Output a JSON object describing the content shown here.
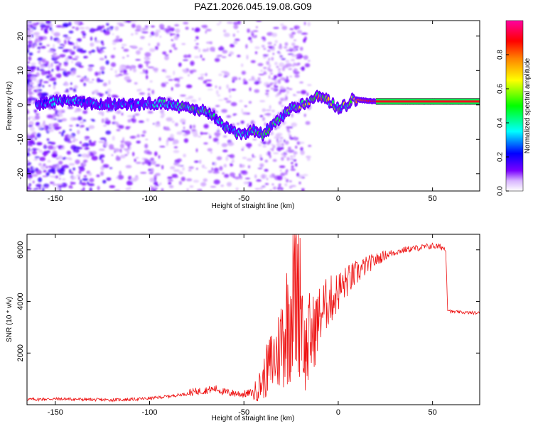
{
  "title": "PAZ1.2026.045.19.08.G09",
  "chart_data": [
    {
      "type": "heatmap",
      "name": "spectrogram",
      "xlabel": "Height of straight line (km)",
      "ylabel": "Frequency (Hz)",
      "xlim": [
        -165,
        75
      ],
      "ylim": [
        -25,
        24.5
      ],
      "xticks": [
        -150,
        -100,
        -50,
        0,
        50
      ],
      "xtick_labels": [
        "-150",
        "-100",
        "-50",
        "0",
        "50"
      ],
      "yticks": [
        -20,
        -10,
        0,
        10,
        20
      ],
      "ytick_labels": [
        "-20",
        "-10",
        "0",
        "10",
        "20"
      ],
      "colorbar": {
        "label": "Normalized spectral amplitude",
        "range": [
          0,
          1
        ],
        "ticks": [
          0.0,
          0.2,
          0.4,
          0.6,
          0.8
        ],
        "tick_labels": [
          "0.0",
          "0.2",
          "0.4",
          "0.6",
          "0.8"
        ],
        "colors": [
          "#ffffff",
          "#d8b4ff",
          "#7a00ff",
          "#0000ff",
          "#00ffff",
          "#00ff00",
          "#ffff00",
          "#ff8000",
          "#ff0000",
          "#ff00a0"
        ]
      },
      "ridge": {
        "height_km": [
          -165,
          -155,
          -145,
          -135,
          -125,
          -115,
          -105,
          -98,
          -90,
          -80,
          -70,
          -65,
          -60,
          -55,
          -50,
          -45,
          -40,
          -35,
          -30,
          -27,
          -25,
          -20,
          -15,
          -10,
          -5,
          0,
          5,
          8,
          10,
          20,
          30,
          50,
          75
        ],
        "frequency_hz": [
          -0.5,
          0.5,
          1.5,
          0.5,
          0,
          0.5,
          0,
          0.5,
          0.5,
          -1,
          -2,
          -4,
          -6,
          -8,
          -8.5,
          -7.5,
          -8.5,
          -6,
          -4,
          -2,
          -1,
          0,
          1,
          3,
          1,
          -1,
          0,
          2,
          1.5,
          1,
          1,
          1,
          1
        ],
        "amplitude": [
          0.3,
          0.3,
          0.35,
          0.3,
          0.3,
          0.3,
          0.3,
          0.35,
          0.4,
          0.45,
          0.45,
          0.4,
          0.4,
          0.35,
          0.4,
          0.5,
          0.5,
          0.45,
          0.45,
          0.5,
          0.55,
          0.6,
          0.65,
          0.7,
          0.6,
          0.5,
          0.6,
          0.75,
          0.8,
          0.9,
          0.95,
          0.95,
          0.95
        ]
      }
    },
    {
      "type": "line",
      "name": "snr",
      "xlabel": "Height of straight line (km)",
      "ylabel": "SNR (10 * v/v)",
      "xlim": [
        -165,
        75
      ],
      "ylim": [
        0,
        6600
      ],
      "xticks": [
        -150,
        -100,
        -50,
        0,
        50
      ],
      "xtick_labels": [
        "-150",
        "-100",
        "-50",
        "0",
        "50"
      ],
      "yticks": [
        2000,
        4000,
        6000
      ],
      "ytick_labels": [
        "2000",
        "4000",
        "6000"
      ],
      "color": "#ee1111",
      "series": [
        {
          "name": "SNR",
          "x": [
            -165,
            -150,
            -140,
            -130,
            -120,
            -110,
            -100,
            -90,
            -80,
            -70,
            -65,
            -60,
            -55,
            -50,
            -45,
            -40,
            -38,
            -35,
            -32,
            -30,
            -28,
            -26,
            -24,
            -22,
            -20,
            -18,
            -15,
            -12,
            -10,
            -8,
            -5,
            -2,
            0,
            5,
            10,
            15,
            20,
            25,
            30,
            35,
            40,
            45,
            50,
            55,
            57,
            58,
            60,
            65,
            70,
            75
          ],
          "y": [
            180,
            200,
            190,
            170,
            160,
            180,
            220,
            300,
            400,
            500,
            560,
            420,
            380,
            350,
            420,
            900,
            1300,
            1700,
            2000,
            2600,
            3000,
            3500,
            4200,
            5000,
            4800,
            2000,
            2500,
            3000,
            3400,
            3700,
            4000,
            4200,
            4400,
            4800,
            5100,
            5400,
            5600,
            5800,
            5900,
            6000,
            6050,
            6100,
            6150,
            6100,
            6000,
            3700,
            3600,
            3580,
            3560,
            3550
          ]
        }
      ]
    }
  ]
}
